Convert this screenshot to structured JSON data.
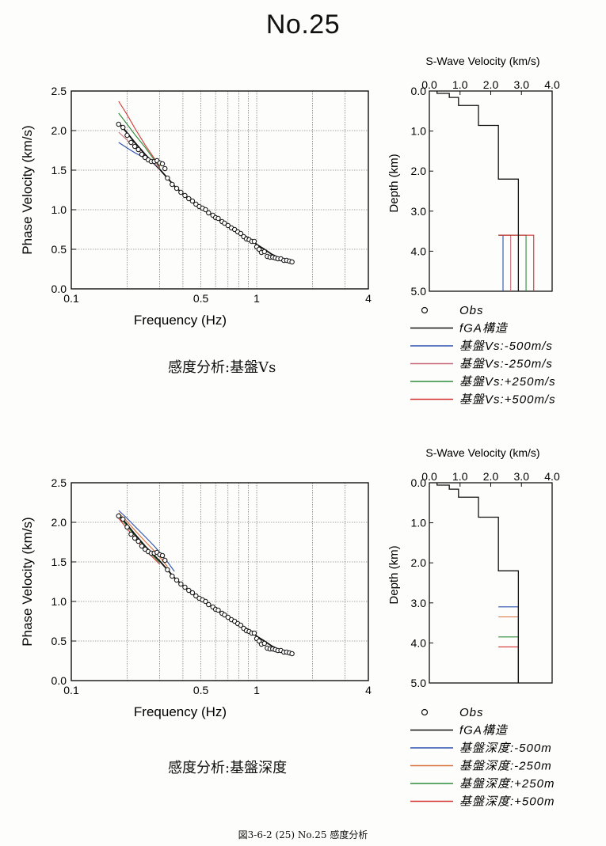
{
  "page": {
    "title": "No.25",
    "footer": "図3-6-2 (25)  No.25  感度分析"
  },
  "chart_data": [
    {
      "type": "line",
      "panel": "top-dispersion",
      "caption": "感度分析:基盤Vs",
      "xlabel": "Frequency (Hz)",
      "ylabel": "Phase Velocity (km/s)",
      "x_scale": "log",
      "xlim": [
        0.1,
        4
      ],
      "ylim": [
        0.0,
        2.5
      ],
      "x_tick_labels": [
        "0.1",
        "0.5",
        "1",
        "4"
      ],
      "y_tick_labels": [
        "0.0",
        "0.5",
        "1.0",
        "1.5",
        "2.0",
        "2.5"
      ],
      "grid": true,
      "obs": {
        "name": "Obs",
        "x": [
          0.18,
          0.19,
          0.2,
          0.21,
          0.22,
          0.23,
          0.24,
          0.25,
          0.26,
          0.27,
          0.28,
          0.29,
          0.3,
          0.31,
          0.32,
          0.33,
          0.35,
          0.37,
          0.39,
          0.41,
          0.43,
          0.45,
          0.47,
          0.49,
          0.51,
          0.53,
          0.55,
          0.58,
          0.6,
          0.62,
          0.65,
          0.67,
          0.7,
          0.73,
          0.76,
          0.79,
          0.82,
          0.85,
          0.88,
          0.91,
          0.94,
          0.97,
          1.0,
          1.03,
          1.06,
          1.1,
          1.14,
          1.18,
          1.22,
          1.26,
          1.3,
          1.35,
          1.4,
          1.45,
          1.5,
          1.55
        ],
        "y": [
          2.08,
          2.04,
          1.94,
          1.85,
          1.8,
          1.76,
          1.7,
          1.66,
          1.63,
          1.61,
          1.61,
          1.62,
          1.59,
          1.58,
          1.52,
          1.4,
          1.32,
          1.27,
          1.22,
          1.18,
          1.14,
          1.11,
          1.07,
          1.04,
          1.02,
          1.0,
          0.96,
          0.93,
          0.9,
          0.89,
          0.85,
          0.83,
          0.8,
          0.77,
          0.75,
          0.72,
          0.7,
          0.66,
          0.63,
          0.62,
          0.6,
          0.6,
          0.53,
          0.5,
          0.46,
          0.47,
          0.41,
          0.4,
          0.4,
          0.39,
          0.38,
          0.38,
          0.36,
          0.36,
          0.35,
          0.34
        ]
      },
      "series": [
        {
          "name": "fGA構造",
          "color": "#111111",
          "x": [
            0.18,
            0.2,
            0.22,
            0.25,
            0.28,
            0.3,
            0.33,
            0.36,
            0.4,
            0.45,
            0.5,
            0.55,
            0.6,
            0.67,
            0.75,
            0.85,
            0.95,
            1.0,
            1.1,
            1.2,
            1.3,
            1.4,
            1.5,
            1.55
          ],
          "y": [
            2.1,
            1.97,
            1.85,
            1.7,
            1.58,
            1.51,
            1.4,
            1.3,
            1.2,
            1.1,
            1.02,
            0.96,
            0.9,
            0.83,
            0.76,
            0.68,
            0.61,
            0.56,
            0.5,
            0.44,
            0.4,
            0.37,
            0.35,
            0.34
          ]
        },
        {
          "name": "基盤Vs:-500m/s",
          "color": "#2a4fb0",
          "x": [
            0.18,
            0.2,
            0.22,
            0.25,
            0.28,
            0.3
          ],
          "y": [
            1.85,
            1.78,
            1.72,
            1.65,
            1.58,
            1.52
          ]
        },
        {
          "name": "基盤Vs:-250m/s",
          "color": "#c96a7a",
          "x": [
            0.18,
            0.2,
            0.22,
            0.25,
            0.28,
            0.3
          ],
          "y": [
            1.98,
            1.88,
            1.79,
            1.68,
            1.59,
            1.52
          ]
        },
        {
          "name": "基盤Vs:+250m/s",
          "color": "#2e8b3a",
          "x": [
            0.18,
            0.2,
            0.22,
            0.25,
            0.28,
            0.3
          ],
          "y": [
            2.22,
            2.08,
            1.95,
            1.79,
            1.63,
            1.53
          ]
        },
        {
          "name": "基盤Vs:+500m/s",
          "color": "#d43030",
          "x": [
            0.18,
            0.2,
            0.22,
            0.25,
            0.28,
            0.3
          ],
          "y": [
            2.37,
            2.2,
            2.03,
            1.82,
            1.65,
            1.54
          ]
        }
      ]
    },
    {
      "type": "line",
      "panel": "top-profile",
      "title": "S-Wave Velocity (km/s)",
      "ylabel": "Depth (km)",
      "xlim": [
        0.0,
        4.0
      ],
      "ylim": [
        0.0,
        5.0
      ],
      "x_tick_labels": [
        "0.0",
        "1.0",
        "2.0",
        "3.0",
        "4.0"
      ],
      "y_tick_labels": [
        "0.0",
        "1.0",
        "2.0",
        "3.0",
        "4.0",
        "5.0"
      ],
      "layers_vs": [
        0.25,
        0.65,
        0.95,
        1.6,
        2.25,
        2.9
      ],
      "layer_bottoms": [
        0.06,
        0.16,
        0.36,
        0.86,
        2.2,
        3.6
      ],
      "variations": [
        {
          "name": "基盤Vs:-500m/s",
          "color": "#2a4fb0",
          "halfspace_vs": 2.4,
          "depth": 3.6
        },
        {
          "name": "基盤Vs:-250m/s",
          "color": "#c96a7a",
          "halfspace_vs": 2.65,
          "depth": 3.6
        },
        {
          "name": "基盤Vs:+250m/s",
          "color": "#2e8b3a",
          "halfspace_vs": 3.15,
          "depth": 3.6
        },
        {
          "name": "基盤Vs:+500m/s",
          "color": "#d43030",
          "halfspace_vs": 3.4,
          "depth": 3.6
        }
      ]
    },
    {
      "type": "line",
      "panel": "bottom-dispersion",
      "caption": "感度分析:基盤深度",
      "xlabel": "Frequency (Hz)",
      "ylabel": "Phase Velocity (km/s)",
      "x_scale": "log",
      "xlim": [
        0.1,
        4
      ],
      "ylim": [
        0.0,
        2.5
      ],
      "x_tick_labels": [
        "0.1",
        "0.5",
        "1",
        "4"
      ],
      "y_tick_labels": [
        "0.0",
        "0.5",
        "1.0",
        "1.5",
        "2.0",
        "2.5"
      ],
      "grid": true,
      "obs_same_as_top": true,
      "series": [
        {
          "name": "fGA構造",
          "color": "#111111",
          "x": [
            0.18,
            0.2,
            0.22,
            0.25,
            0.28,
            0.3,
            0.33,
            0.36,
            0.4,
            0.45,
            0.5,
            0.55,
            0.6,
            0.67,
            0.75,
            0.85,
            0.95,
            1.0,
            1.1,
            1.2,
            1.3,
            1.4,
            1.5,
            1.55
          ],
          "y": [
            2.1,
            1.97,
            1.85,
            1.7,
            1.58,
            1.51,
            1.4,
            1.3,
            1.2,
            1.1,
            1.02,
            0.96,
            0.9,
            0.83,
            0.76,
            0.68,
            0.61,
            0.56,
            0.5,
            0.44,
            0.4,
            0.37,
            0.35,
            0.34
          ]
        },
        {
          "name": "基盤深度:-500m",
          "color": "#2a4fb0",
          "x": [
            0.18,
            0.2,
            0.22,
            0.25,
            0.28,
            0.3,
            0.33,
            0.36
          ],
          "y": [
            2.15,
            2.05,
            1.95,
            1.82,
            1.7,
            1.62,
            1.5,
            1.38
          ]
        },
        {
          "name": "基盤深度:-250m",
          "color": "#d9703a",
          "x": [
            0.18,
            0.2,
            0.22,
            0.25,
            0.28,
            0.3,
            0.33
          ],
          "y": [
            2.12,
            2.01,
            1.9,
            1.76,
            1.64,
            1.56,
            1.44
          ]
        },
        {
          "name": "基盤深度:+250m",
          "color": "#2e8b3a",
          "x": [
            0.18,
            0.2,
            0.22,
            0.25,
            0.28,
            0.3
          ],
          "y": [
            2.08,
            1.95,
            1.83,
            1.68,
            1.56,
            1.49
          ]
        },
        {
          "name": "基盤深度:+500m",
          "color": "#d43030",
          "x": [
            0.18,
            0.2,
            0.22,
            0.25,
            0.28,
            0.3
          ],
          "y": [
            2.05,
            1.92,
            1.8,
            1.65,
            1.54,
            1.47
          ]
        }
      ]
    },
    {
      "type": "line",
      "panel": "bottom-profile",
      "title": "S-Wave Velocity (km/s)",
      "ylabel": "Depth (km)",
      "xlim": [
        0.0,
        4.0
      ],
      "ylim": [
        0.0,
        5.0
      ],
      "x_tick_labels": [
        "0.0",
        "1.0",
        "2.0",
        "3.0",
        "4.0"
      ],
      "y_tick_labels": [
        "0.0",
        "1.0",
        "2.0",
        "3.0",
        "4.0",
        "5.0"
      ],
      "layers_vs": [
        0.25,
        0.65,
        0.95,
        1.6,
        2.25,
        2.9
      ],
      "layer_bottoms": [
        0.06,
        0.16,
        0.36,
        0.86,
        2.2,
        3.6
      ],
      "variations": [
        {
          "name": "基盤深度:-500m",
          "color": "#2a4fb0",
          "halfspace_vs": 2.9,
          "depth": 3.1
        },
        {
          "name": "基盤深度:-250m",
          "color": "#d9703a",
          "halfspace_vs": 2.9,
          "depth": 3.35
        },
        {
          "name": "基盤深度:+250m",
          "color": "#2e8b3a",
          "halfspace_vs": 2.9,
          "depth": 3.85
        },
        {
          "name": "基盤深度:+500m",
          "color": "#d43030",
          "halfspace_vs": 2.9,
          "depth": 4.1
        }
      ]
    }
  ],
  "legends": {
    "top": [
      {
        "label": "Obs",
        "kind": "circle",
        "color": "#111111"
      },
      {
        "label": "fGA構造",
        "kind": "line",
        "color": "#111111"
      },
      {
        "label": "基盤Vs:-500m/s",
        "kind": "line",
        "color": "#2a4fb0"
      },
      {
        "label": "基盤Vs:-250m/s",
        "kind": "line",
        "color": "#c96a7a"
      },
      {
        "label": "基盤Vs:+250m/s",
        "kind": "line",
        "color": "#2e8b3a"
      },
      {
        "label": "基盤Vs:+500m/s",
        "kind": "line",
        "color": "#d43030"
      }
    ],
    "bottom": [
      {
        "label": "Obs",
        "kind": "circle",
        "color": "#111111"
      },
      {
        "label": "fGA構造",
        "kind": "line",
        "color": "#111111"
      },
      {
        "label": "基盤深度:-500m",
        "kind": "line",
        "color": "#2a4fb0"
      },
      {
        "label": "基盤深度:-250m",
        "kind": "line",
        "color": "#d9703a"
      },
      {
        "label": "基盤深度:+250m",
        "kind": "line",
        "color": "#2e8b3a"
      },
      {
        "label": "基盤深度:+500m",
        "kind": "line",
        "color": "#d43030"
      }
    ]
  }
}
